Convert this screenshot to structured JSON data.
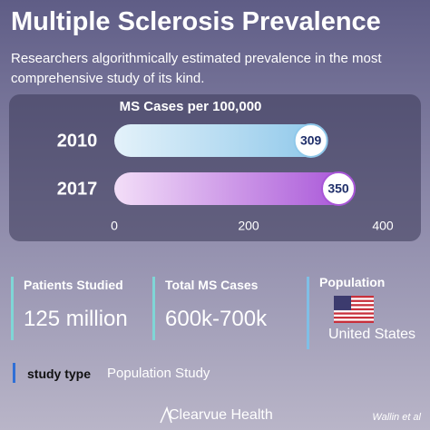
{
  "header": {
    "title": "Multiple Sclerosis Prevalence",
    "subtitle": "Researchers algorithmically estimated prevalence in the most comprehensive study of its kind."
  },
  "chart_data": {
    "type": "bar",
    "orientation": "horizontal",
    "title": "MS Cases per 100,000",
    "categories": [
      "2010",
      "2017"
    ],
    "values": [
      309,
      350
    ],
    "colors": [
      "#8fc8ea",
      "#a855d8"
    ],
    "xlim": [
      0,
      400
    ],
    "xticks": [
      0,
      200,
      400
    ]
  },
  "stats": [
    {
      "label": "Patients Studied",
      "value": "125 million"
    },
    {
      "label": "Total MS Cases",
      "value": "600k-700k"
    },
    {
      "label": "Population",
      "value": "United States"
    }
  ],
  "study": {
    "label": "study type",
    "value": "Population Study"
  },
  "footer": {
    "brand": "Clearvue Health",
    "source": "Wallin et al"
  }
}
